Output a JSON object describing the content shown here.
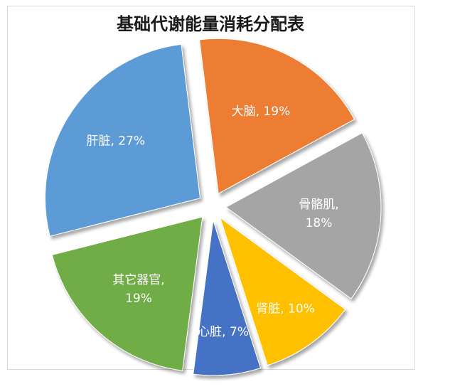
{
  "chart_data": {
    "type": "pie",
    "title": "基础代谢能量消耗分配表",
    "exploded": true,
    "slices": [
      {
        "name": "大脑",
        "value": 19,
        "label_lines": [
          "大脑, 19%"
        ],
        "color": "#ED7D31",
        "label_color": "#ffffff"
      },
      {
        "name": "骨骼肌",
        "value": 18,
        "label_lines": [
          "骨骼肌,",
          "18%"
        ],
        "color": "#A5A5A5",
        "label_color": "#ffffff"
      },
      {
        "name": "肾脏",
        "value": 10,
        "label_lines": [
          "肾脏, 10%"
        ],
        "color": "#FFC000",
        "label_color": "#ffffff"
      },
      {
        "name": "心脏",
        "value": 7,
        "label_lines": [
          "心脏, 7%"
        ],
        "color": "#4472C4",
        "label_color": "#ffffff"
      },
      {
        "name": "其它器官",
        "value": 19,
        "label_lines": [
          "其它器官,",
          "19%"
        ],
        "color": "#70AD47",
        "label_color": "#ffffff"
      },
      {
        "name": "肝脏",
        "value": 27,
        "label_lines": [
          "肝脏, 27%"
        ],
        "color": "#5B9BD5",
        "label_color": "#ffffff"
      }
    ]
  }
}
